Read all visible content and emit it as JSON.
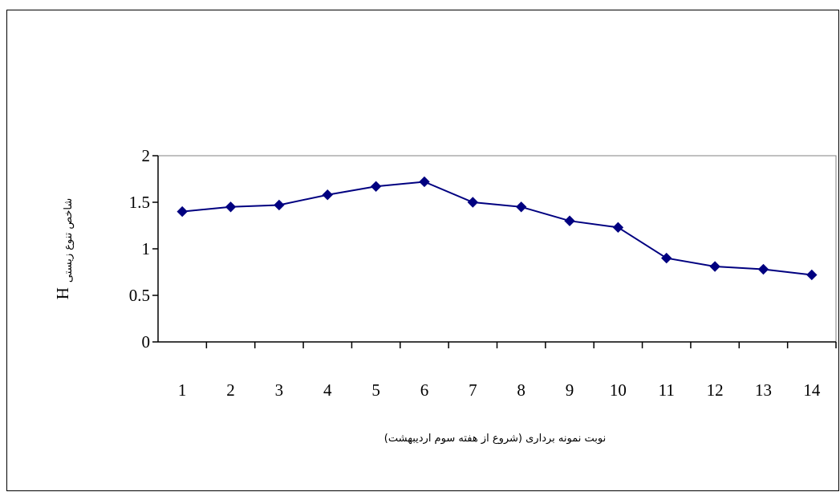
{
  "chart_data": {
    "type": "line",
    "title": "",
    "x": [
      "1",
      "2",
      "3",
      "4",
      "5",
      "6",
      "7",
      "8",
      "9",
      "10",
      "11",
      "12",
      "13",
      "14"
    ],
    "series": [
      {
        "values": [
          1.4,
          1.45,
          1.47,
          1.58,
          1.67,
          1.72,
          1.5,
          1.45,
          1.3,
          1.23,
          0.9,
          0.81,
          0.78,
          0.72
        ]
      }
    ],
    "xlabel": "نوبت نمونه برداری (شروع از هفته سوم اردیبهشت)",
    "ylabel_main": "H",
    "ylabel_sub": "شاخص تنوع زیستی",
    "ylim": [
      0,
      2
    ],
    "yticks": [
      "0",
      "0.5",
      "1",
      "1.5",
      "2"
    ],
    "grid": false,
    "legend": "none",
    "colors": {
      "series": "#000080",
      "axis": "#000000"
    },
    "marker": "diamond"
  }
}
